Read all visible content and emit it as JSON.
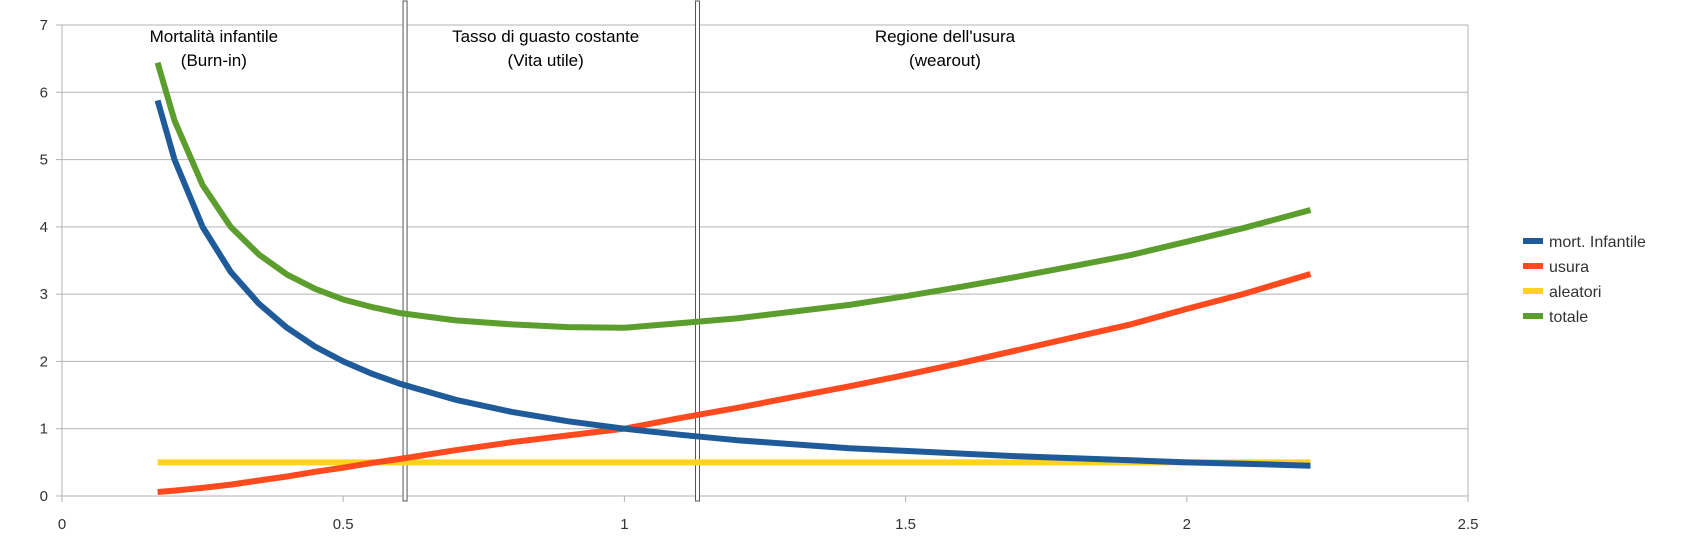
{
  "chart_data": {
    "type": "line",
    "title": "",
    "xlabel": "",
    "ylabel": "",
    "xlim": [
      0,
      2.5
    ],
    "ylim": [
      0,
      7
    ],
    "x_ticks": [
      "0",
      "0.5",
      "1",
      "1.5",
      "2",
      "2.5"
    ],
    "y_ticks": [
      "0",
      "1",
      "2",
      "3",
      "4",
      "5",
      "6",
      "7"
    ],
    "grid": "horizontal",
    "legend_position": "right",
    "series": [
      {
        "name": "mort. Infantile",
        "color": "#1f5b9a",
        "x": [
          0.17,
          0.2,
          0.25,
          0.3,
          0.35,
          0.4,
          0.45,
          0.5,
          0.55,
          0.6,
          0.7,
          0.8,
          0.9,
          1.0,
          1.1,
          1.2,
          1.3,
          1.4,
          1.5,
          1.6,
          1.7,
          1.8,
          1.9,
          2.0,
          2.1,
          2.22
        ],
        "y": [
          5.88,
          5.0,
          4.0,
          3.33,
          2.86,
          2.5,
          2.22,
          2.0,
          1.82,
          1.67,
          1.43,
          1.25,
          1.11,
          1.0,
          0.91,
          0.83,
          0.77,
          0.71,
          0.67,
          0.63,
          0.59,
          0.56,
          0.53,
          0.5,
          0.48,
          0.45
        ]
      },
      {
        "name": "usura",
        "color": "#ff4a1f",
        "x": [
          0.17,
          0.2,
          0.25,
          0.3,
          0.35,
          0.4,
          0.45,
          0.5,
          0.55,
          0.6,
          0.7,
          0.8,
          0.9,
          1.0,
          1.1,
          1.2,
          1.3,
          1.4,
          1.5,
          1.6,
          1.7,
          1.8,
          1.9,
          2.0,
          2.1,
          2.22
        ],
        "y": [
          0.06,
          0.08,
          0.12,
          0.17,
          0.23,
          0.29,
          0.36,
          0.42,
          0.49,
          0.55,
          0.68,
          0.8,
          0.9,
          1.0,
          1.16,
          1.31,
          1.47,
          1.63,
          1.8,
          1.98,
          2.17,
          2.36,
          2.55,
          2.78,
          3.0,
          3.3
        ]
      },
      {
        "name": "aleatori",
        "color": "#ffd21f",
        "x": [
          0.17,
          2.22
        ],
        "y": [
          0.5,
          0.5
        ]
      },
      {
        "name": "totale",
        "color": "#5c9e2e",
        "x": [
          0.17,
          0.2,
          0.25,
          0.3,
          0.35,
          0.4,
          0.45,
          0.5,
          0.55,
          0.6,
          0.7,
          0.8,
          0.9,
          1.0,
          1.1,
          1.2,
          1.3,
          1.4,
          1.5,
          1.6,
          1.7,
          1.8,
          1.9,
          2.0,
          2.1,
          2.22
        ],
        "y": [
          6.44,
          5.58,
          4.62,
          4.0,
          3.59,
          3.29,
          3.08,
          2.92,
          2.81,
          2.72,
          2.61,
          2.55,
          2.51,
          2.5,
          2.57,
          2.64,
          2.74,
          2.84,
          2.97,
          3.11,
          3.26,
          3.42,
          3.58,
          3.78,
          3.98,
          4.25
        ]
      }
    ],
    "region_dividers_x": [
      0.61,
      1.13
    ],
    "region_labels": [
      {
        "line1": "Mortalità infantile",
        "line2": "(Burn-in)",
        "x": 0.27
      },
      {
        "line1": "Tasso di guasto costante",
        "line2": "(Vita utile)",
        "x": 0.86
      },
      {
        "line1": "Regione dell'usura",
        "line2": "(wearout)",
        "x": 1.57
      }
    ]
  }
}
